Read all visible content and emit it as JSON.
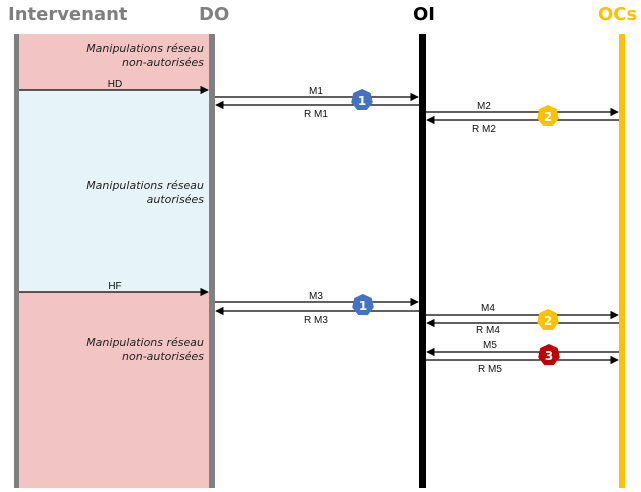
{
  "colors": {
    "intervenant": "#7f7f7f",
    "do": "#808080",
    "oi": "#000000",
    "ocs": "#ffc000",
    "zone_unauthorized": "#f2c4c4",
    "zone_authorized": "#e6f4fa",
    "badge_1": "#4472c4",
    "badge_2": "#ffc000",
    "badge_3": "#c00000"
  },
  "headers": {
    "intervenant": "Intervenant",
    "do": "DO",
    "oi": "OI",
    "ocs": "OCs"
  },
  "zones": {
    "top": {
      "line1": "Manipulations réseau",
      "line2": "non-autorisées"
    },
    "middle": {
      "line1": "Manipulations réseau",
      "line2": "autorisées"
    },
    "bottom": {
      "line1": "Manipulations réseau",
      "line2": "non-autorisées"
    }
  },
  "messages": {
    "hd": "HD",
    "m1": "M1",
    "rm1": "R M1",
    "m2": "M2",
    "rm2": "R M2",
    "hf": "HF",
    "m3": "M3",
    "rm3": "R M3",
    "m4": "M4",
    "rm4": "R M4",
    "m5": "M5",
    "rm5": "R M5"
  },
  "badges": {
    "b1a": "1",
    "b2a": "2",
    "b1b": "1",
    "b2b": "2",
    "b3": "3"
  }
}
